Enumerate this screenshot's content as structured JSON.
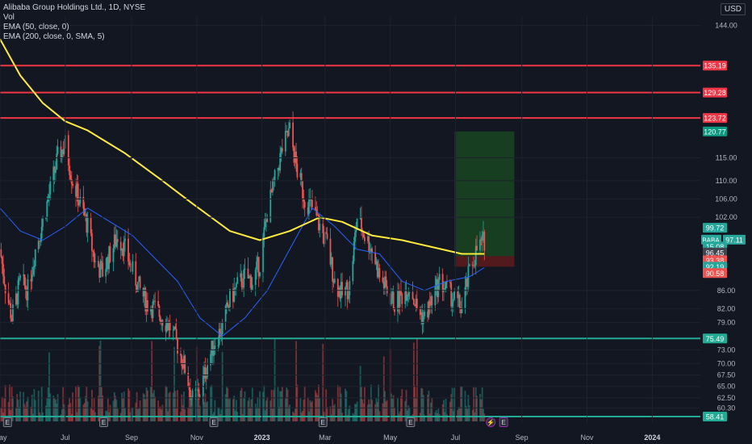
{
  "header": {
    "title": "Alibaba Group Holdings Ltd., 1D, NYSE",
    "vol_label": "Vol",
    "ema50_label": "EMA (50, close, 0)",
    "ema200_label": "EMA (200, close, 0, SMA, 5)",
    "currency": "USD"
  },
  "colors": {
    "background": "#131722",
    "up": "#26a69a",
    "down": "#ef5350",
    "ema50": "#2962ff",
    "ema200": "#ffeb3b",
    "resistance": "#f23645",
    "support": "#22ab94",
    "target_zone": "#1b5e20",
    "stop_zone": "#7f1d1d"
  },
  "chart_data": {
    "type": "candlestick",
    "symbol": "BABA",
    "ylim": [
      57,
      146
    ],
    "y_ticks": [
      "144.00",
      "115.00",
      "110.00",
      "106.00",
      "102.00",
      "86.00",
      "82.00",
      "79.00",
      "73.00",
      "70.00",
      "67.50",
      "65.00",
      "62.50",
      "60.30"
    ],
    "x_ticks": [
      "May",
      "Jul",
      "Sep",
      "Nov",
      "2023",
      "Mar",
      "May",
      "Jul",
      "Sep",
      "Nov",
      "2024"
    ],
    "x_axis": {
      "start": "2022-05-01",
      "end": "2024-02-15",
      "tick_dates": [
        "2022-05-01",
        "2022-07-01",
        "2022-09-01",
        "2022-11-01",
        "2023-01-01",
        "2023-03-01",
        "2023-05-01",
        "2023-07-01",
        "2023-09-01",
        "2023-11-01",
        "2024-01-01"
      ]
    },
    "price_path": [
      [
        "2022-05-01",
        95
      ],
      [
        "2022-05-06",
        87
      ],
      [
        "2022-05-12",
        80
      ],
      [
        "2022-05-20",
        88
      ],
      [
        "2022-05-27",
        86
      ],
      [
        "2022-06-03",
        95
      ],
      [
        "2022-06-10",
        101
      ],
      [
        "2022-06-17",
        108
      ],
      [
        "2022-06-24",
        115
      ],
      [
        "2022-07-01",
        118
      ],
      [
        "2022-07-08",
        110
      ],
      [
        "2022-07-15",
        105
      ],
      [
        "2022-07-22",
        100
      ],
      [
        "2022-07-29",
        92
      ],
      [
        "2022-08-05",
        90
      ],
      [
        "2022-08-12",
        94
      ],
      [
        "2022-08-19",
        98
      ],
      [
        "2022-08-26",
        95
      ],
      [
        "2022-09-02",
        90
      ],
      [
        "2022-09-09",
        86
      ],
      [
        "2022-09-16",
        83
      ],
      [
        "2022-09-23",
        82
      ],
      [
        "2022-09-30",
        80
      ],
      [
        "2022-10-07",
        78
      ],
      [
        "2022-10-14",
        74
      ],
      [
        "2022-10-21",
        69
      ],
      [
        "2022-10-28",
        62
      ],
      [
        "2022-11-04",
        64
      ],
      [
        "2022-11-11",
        70
      ],
      [
        "2022-11-18",
        75
      ],
      [
        "2022-11-25",
        78
      ],
      [
        "2022-12-02",
        84
      ],
      [
        "2022-12-09",
        87
      ],
      [
        "2022-12-16",
        89
      ],
      [
        "2022-12-23",
        88
      ],
      [
        "2022-12-30",
        92
      ],
      [
        "2023-01-06",
        103
      ],
      [
        "2023-01-13",
        110
      ],
      [
        "2023-01-20",
        117
      ],
      [
        "2023-01-27",
        121
      ],
      [
        "2023-02-03",
        112
      ],
      [
        "2023-02-10",
        106
      ],
      [
        "2023-02-17",
        104
      ],
      [
        "2023-02-24",
        100
      ],
      [
        "2023-03-03",
        96
      ],
      [
        "2023-03-10",
        88
      ],
      [
        "2023-03-17",
        85
      ],
      [
        "2023-03-24",
        87
      ],
      [
        "2023-03-31",
        102
      ],
      [
        "2023-04-07",
        98
      ],
      [
        "2023-04-14",
        95
      ],
      [
        "2023-04-21",
        89
      ],
      [
        "2023-04-28",
        86
      ],
      [
        "2023-05-05",
        83
      ],
      [
        "2023-05-12",
        85
      ],
      [
        "2023-05-19",
        87
      ],
      [
        "2023-05-26",
        82
      ],
      [
        "2023-06-02",
        80
      ],
      [
        "2023-06-09",
        84
      ],
      [
        "2023-06-16",
        88
      ],
      [
        "2023-06-23",
        86
      ],
      [
        "2023-06-30",
        84
      ],
      [
        "2023-07-07",
        82
      ],
      [
        "2023-07-14",
        90
      ],
      [
        "2023-07-21",
        95
      ],
      [
        "2023-07-28",
        97
      ]
    ],
    "ema50": [
      [
        "2022-05-01",
        104
      ],
      [
        "2022-05-20",
        99
      ],
      [
        "2022-06-10",
        97
      ],
      [
        "2022-07-01",
        100
      ],
      [
        "2022-07-22",
        104
      ],
      [
        "2022-08-12",
        101
      ],
      [
        "2022-09-02",
        98
      ],
      [
        "2022-09-23",
        93
      ],
      [
        "2022-10-14",
        88
      ],
      [
        "2022-11-04",
        80
      ],
      [
        "2022-11-25",
        76
      ],
      [
        "2022-12-16",
        80
      ],
      [
        "2023-01-06",
        86
      ],
      [
        "2023-01-27",
        95
      ],
      [
        "2023-02-17",
        104
      ],
      [
        "2023-03-10",
        100
      ],
      [
        "2023-03-31",
        95
      ],
      [
        "2023-04-21",
        94
      ],
      [
        "2023-05-12",
        88
      ],
      [
        "2023-06-02",
        86
      ],
      [
        "2023-06-23",
        88
      ],
      [
        "2023-07-14",
        89
      ],
      [
        "2023-07-28",
        91
      ]
    ],
    "ema200": [
      [
        "2022-05-01",
        141
      ],
      [
        "2022-05-20",
        133
      ],
      [
        "2022-06-10",
        127
      ],
      [
        "2022-07-01",
        123
      ],
      [
        "2022-07-22",
        121
      ],
      [
        "2022-08-26",
        116
      ],
      [
        "2022-09-30",
        110
      ],
      [
        "2022-10-28",
        105
      ],
      [
        "2022-12-02",
        99
      ],
      [
        "2022-12-30",
        97
      ],
      [
        "2023-01-27",
        99
      ],
      [
        "2023-02-24",
        102
      ],
      [
        "2023-03-17",
        101
      ],
      [
        "2023-04-14",
        98
      ],
      [
        "2023-05-12",
        97
      ],
      [
        "2023-06-09",
        95.5
      ],
      [
        "2023-07-07",
        94
      ],
      [
        "2023-07-28",
        94
      ]
    ],
    "horizontal_levels": [
      {
        "label": "135.19",
        "value": 135.19,
        "kind": "resistance"
      },
      {
        "label": "129.28",
        "value": 129.28,
        "kind": "resistance"
      },
      {
        "label": "123.72",
        "value": 123.72,
        "kind": "resistance"
      },
      {
        "label": "75.49",
        "value": 75.49,
        "kind": "support"
      },
      {
        "label": "58.41",
        "value": 58.41,
        "kind": "support"
      }
    ],
    "price_labels": [
      {
        "label": "120.77",
        "value": 120.77,
        "kind": "target"
      },
      {
        "label": "99.72",
        "value": 99.72,
        "kind": "up"
      },
      {
        "label": "97.11",
        "value": 97.11,
        "kind": "last",
        "tag": "BABA"
      },
      {
        "label": "15.08",
        "value": 95.6,
        "kind": "up"
      },
      {
        "label": "96.45",
        "value": 94.3,
        "kind": "neutral"
      },
      {
        "label": "93.38",
        "value": 92.6,
        "kind": "down"
      },
      {
        "label": "92.19",
        "value": 91.2,
        "kind": "up"
      },
      {
        "label": "90.58",
        "value": 89.8,
        "kind": "down"
      }
    ],
    "position": {
      "start": "2023-06-30",
      "end": "2023-08-25",
      "entry": 93.5,
      "target": 120.77,
      "stop": 91.2
    },
    "event_markers": [
      {
        "label": "E",
        "date": "2022-05-08"
      },
      {
        "label": "E",
        "date": "2022-08-06"
      },
      {
        "label": "E",
        "date": "2022-11-17"
      },
      {
        "label": "E",
        "date": "2023-02-27"
      },
      {
        "label": "E",
        "date": "2023-05-20"
      },
      {
        "label": "⚡",
        "date": "2023-08-03"
      },
      {
        "label": "E",
        "date": "2023-08-15"
      }
    ]
  }
}
